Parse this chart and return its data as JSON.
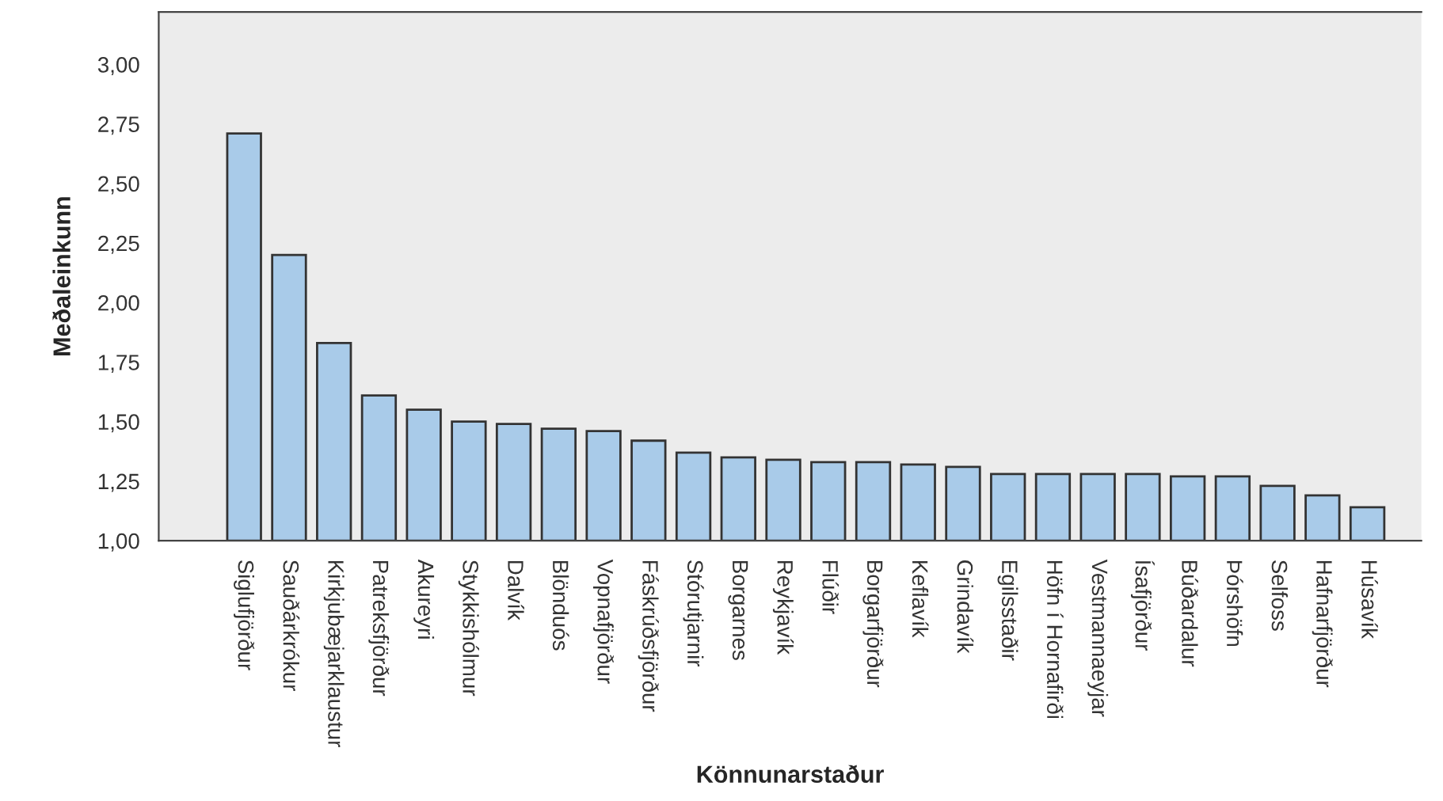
{
  "chart_data": {
    "type": "bar",
    "xlabel": "Könnunarstaður",
    "ylabel": "Meðaleinkunn",
    "categories": [
      "Siglufjörður",
      "Sauðárkrókur",
      "Kirkjubæjarklaustur",
      "Patreksfjörður",
      "Akureyri",
      "Stykkishólmur",
      "Dalvík",
      "Blönduós",
      "Vopnafjörður",
      "Fáskrúðsfjörður",
      "Stórutjarnir",
      "Borgarnes",
      "Reykjavík",
      "Flúðir",
      "Borgarfjörður",
      "Keflavík",
      "Grindavík",
      "Egilsstaðir",
      "Höfn í Hornafirði",
      "Vestmannaeyjar",
      "Ísafjörður",
      "Búðardalur",
      "Þórshöfn",
      "Selfoss",
      "Hafnarfjörður",
      "Húsavík"
    ],
    "values": [
      2.71,
      2.2,
      1.83,
      1.61,
      1.55,
      1.5,
      1.49,
      1.47,
      1.46,
      1.42,
      1.37,
      1.35,
      1.34,
      1.33,
      1.33,
      1.32,
      1.31,
      1.28,
      1.28,
      1.28,
      1.28,
      1.27,
      1.27,
      1.23,
      1.19,
      1.14
    ],
    "color": "#a9cbe9",
    "ylim": [
      1.0,
      3.22
    ],
    "yticks": [
      {
        "value": 1.0,
        "label": "1,00"
      },
      {
        "value": 1.25,
        "label": "1,25"
      },
      {
        "value": 1.5,
        "label": "1,50"
      },
      {
        "value": 1.75,
        "label": "1,75"
      },
      {
        "value": 2.0,
        "label": "2,00"
      },
      {
        "value": 2.25,
        "label": "2,25"
      },
      {
        "value": 2.5,
        "label": "2,50"
      },
      {
        "value": 2.75,
        "label": "2,75"
      },
      {
        "value": 3.0,
        "label": "3,00"
      }
    ],
    "grid": false
  }
}
